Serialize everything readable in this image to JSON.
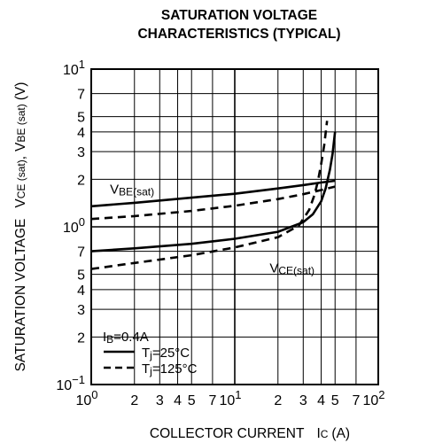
{
  "chart_data": {
    "type": "line",
    "title_line1": "SATURATION VOLTAGE",
    "title_line2": "CHARACTERISTICS (TYPICAL)",
    "xlabel": "COLLECTOR CURRENT",
    "xlabel_symbol": "I",
    "xlabel_symbol_sub": "C",
    "xlabel_unit": "(A)",
    "ylabel_prefix": "SATURATION VOLTAGE",
    "ylabel_v1": "V",
    "ylabel_v1_sub": "CE (sat)",
    "ylabel_sep": ",",
    "ylabel_v2": "V",
    "ylabel_v2_sub": "BE (sat)",
    "ylabel_unit": "(V)",
    "x_scale": "log",
    "y_scale": "log",
    "xlim": [
      1,
      100
    ],
    "ylim": [
      0.1,
      10
    ],
    "grid": true,
    "x_ticks": [
      {
        "value": 1,
        "base": "10",
        "exp": "0"
      },
      {
        "value": 2,
        "label": "2"
      },
      {
        "value": 3,
        "label": "3"
      },
      {
        "value": 4,
        "label": "4"
      },
      {
        "value": 5,
        "label": "5"
      },
      {
        "value": 7,
        "label": "7"
      },
      {
        "value": 10,
        "base": "10",
        "exp": "1"
      },
      {
        "value": 20,
        "label": "2"
      },
      {
        "value": 30,
        "label": "3"
      },
      {
        "value": 40,
        "label": "4"
      },
      {
        "value": 50,
        "label": "5"
      },
      {
        "value": 70,
        "label": "7"
      },
      {
        "value": 100,
        "base": "10",
        "exp": "2"
      }
    ],
    "y_ticks": [
      {
        "value": 10,
        "base": "10",
        "exp": "1"
      },
      {
        "value": 7,
        "label": "7"
      },
      {
        "value": 5,
        "label": "5"
      },
      {
        "value": 4,
        "label": "4"
      },
      {
        "value": 3,
        "label": "3"
      },
      {
        "value": 2,
        "label": "2"
      },
      {
        "value": 1,
        "base": "10",
        "exp": "0"
      },
      {
        "value": 0.7,
        "label": "7"
      },
      {
        "value": 0.5,
        "label": "5"
      },
      {
        "value": 0.4,
        "label": "4"
      },
      {
        "value": 0.3,
        "label": "3"
      },
      {
        "value": 0.2,
        "label": "2"
      },
      {
        "value": 0.1,
        "base": "10",
        "exp": "−1"
      }
    ],
    "series": [
      {
        "curve": "VBE(sat)",
        "condition": "Tj=25°C",
        "style": "solid",
        "x": [
          1,
          2,
          5,
          10,
          20,
          30,
          40,
          50
        ],
        "y": [
          1.35,
          1.42,
          1.53,
          1.62,
          1.75,
          1.84,
          1.91,
          1.96
        ]
      },
      {
        "curve": "VBE(sat)",
        "condition": "Tj=125°C",
        "style": "dashed",
        "x": [
          1,
          2,
          5,
          10,
          20,
          30,
          40,
          50
        ],
        "y": [
          1.12,
          1.17,
          1.26,
          1.36,
          1.5,
          1.61,
          1.71,
          1.8
        ]
      },
      {
        "curve": "VCE(sat)",
        "condition": "Tj=25°C",
        "style": "solid",
        "x": [
          1,
          2,
          5,
          10,
          20,
          30,
          35,
          40,
          43,
          46,
          48,
          50
        ],
        "y": [
          0.7,
          0.73,
          0.78,
          0.84,
          0.93,
          1.07,
          1.2,
          1.45,
          1.75,
          2.3,
          2.9,
          4.0
        ]
      },
      {
        "curve": "VCE(sat)",
        "condition": "Tj=125°C",
        "style": "dashed",
        "x": [
          1,
          2,
          5,
          10,
          20,
          28,
          33,
          36,
          38,
          40,
          42,
          44
        ],
        "y": [
          0.54,
          0.59,
          0.66,
          0.74,
          0.86,
          1.02,
          1.28,
          1.6,
          1.95,
          2.5,
          3.3,
          4.7
        ]
      }
    ],
    "annotations": [
      {
        "text": "V",
        "sub": "BE(sat)",
        "anchor_x": 1.35,
        "anchor_y": 1.75
      },
      {
        "text": "V",
        "sub": "CE(sat)",
        "anchor_x": 17.5,
        "anchor_y": 0.555
      }
    ],
    "legend": {
      "position": "bottom-left",
      "header_text": "I",
      "header_sub": "B",
      "header_value": "=0.4A",
      "entries": [
        {
          "style": "solid",
          "text": "T",
          "sub": "j",
          "value": "=25°C"
        },
        {
          "style": "dashed",
          "text": "T",
          "sub": "j",
          "value": "=125°C"
        }
      ]
    }
  }
}
